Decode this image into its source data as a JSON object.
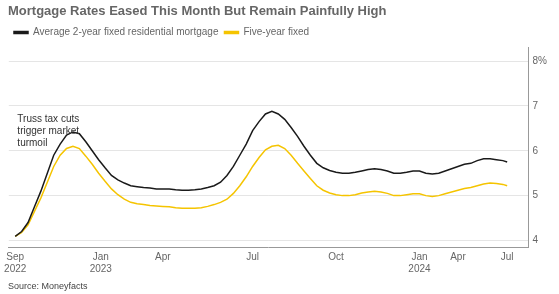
{
  "chart_data": {
    "type": "line",
    "title": "Mortgage Rates Eased This Month But Remain Painfully High",
    "x": [
      0,
      0.3,
      0.6,
      0.9,
      1.2,
      1.5,
      1.8,
      2.1,
      2.4,
      2.7,
      3.0,
      3.3,
      3.6,
      3.9,
      4.2,
      4.5,
      4.8,
      5.1,
      5.4,
      5.7,
      6.0,
      6.3,
      6.6,
      6.9,
      7.2,
      7.5,
      7.8,
      8.1,
      8.4,
      8.7,
      9.0,
      9.3,
      9.6,
      9.9,
      10.2,
      10.5,
      10.8,
      11.1,
      11.4,
      11.7,
      12.0,
      12.3,
      12.6,
      12.9,
      13.2,
      13.5,
      13.8,
      14.1,
      14.4,
      14.7,
      15.0,
      15.3,
      15.6,
      15.9,
      16.2,
      16.5,
      16.8,
      17.1,
      17.4,
      17.7,
      18.0,
      18.3,
      18.6,
      18.9,
      19.2,
      19.5,
      19.8,
      20.1,
      20.4,
      20.7,
      21.0,
      21.3,
      21.6,
      21.9,
      22.2,
      22.5,
      22.8,
      23.0
    ],
    "series": [
      {
        "name": "Average 2-year fixed residential mortgage",
        "color": "#1a1a1a",
        "values": [
          4.09,
          4.2,
          4.4,
          4.75,
          5.1,
          5.5,
          5.9,
          6.15,
          6.35,
          6.42,
          6.38,
          6.2,
          6.0,
          5.8,
          5.62,
          5.45,
          5.35,
          5.28,
          5.22,
          5.2,
          5.18,
          5.17,
          5.15,
          5.15,
          5.15,
          5.13,
          5.12,
          5.12,
          5.13,
          5.15,
          5.18,
          5.22,
          5.3,
          5.45,
          5.65,
          5.9,
          6.15,
          6.45,
          6.65,
          6.82,
          6.88,
          6.82,
          6.7,
          6.52,
          6.32,
          6.1,
          5.9,
          5.72,
          5.62,
          5.56,
          5.52,
          5.5,
          5.5,
          5.52,
          5.55,
          5.58,
          5.6,
          5.58,
          5.55,
          5.5,
          5.5,
          5.52,
          5.55,
          5.55,
          5.5,
          5.48,
          5.5,
          5.55,
          5.6,
          5.65,
          5.7,
          5.72,
          5.78,
          5.82,
          5.82,
          5.8,
          5.78,
          5.75
        ]
      },
      {
        "name": "Five-year fixed",
        "color": "#f5c400",
        "values": [
          4.09,
          4.18,
          4.35,
          4.65,
          4.95,
          5.3,
          5.65,
          5.9,
          6.05,
          6.1,
          6.05,
          5.88,
          5.7,
          5.5,
          5.32,
          5.15,
          5.02,
          4.92,
          4.85,
          4.82,
          4.8,
          4.78,
          4.77,
          4.76,
          4.75,
          4.73,
          4.72,
          4.72,
          4.72,
          4.73,
          4.76,
          4.8,
          4.85,
          4.92,
          5.05,
          5.22,
          5.42,
          5.65,
          5.85,
          6.02,
          6.1,
          6.12,
          6.05,
          5.9,
          5.72,
          5.55,
          5.38,
          5.22,
          5.12,
          5.06,
          5.02,
          5.0,
          5.0,
          5.02,
          5.06,
          5.08,
          5.1,
          5.08,
          5.05,
          5.0,
          5.0,
          5.02,
          5.04,
          5.04,
          5.0,
          4.98,
          5.0,
          5.04,
          5.08,
          5.12,
          5.16,
          5.18,
          5.22,
          5.26,
          5.28,
          5.27,
          5.25,
          5.22
        ]
      }
    ],
    "xlim": [
      -0.3,
      24.0
    ],
    "xticks": [
      {
        "value": 0,
        "label": "Sep 2022"
      },
      {
        "value": 4.0,
        "label": "Jan 2023"
      },
      {
        "value": 6.9,
        "label": "Apr"
      },
      {
        "value": 11.1,
        "label": "Jul"
      },
      {
        "value": 15.0,
        "label": "Oct"
      },
      {
        "value": 18.9,
        "label": "Jan 2024"
      },
      {
        "value": 20.7,
        "label": "Apr"
      },
      {
        "value": 23.0,
        "label": "Jul"
      }
    ],
    "ylim": [
      3.85,
      8.3
    ],
    "yticks": [
      4,
      5,
      6,
      7,
      {
        "value": 8,
        "label": "8%"
      }
    ],
    "grid": true,
    "legend": "top",
    "annotations": [
      {
        "text": "Truss tax cuts\ntrigger market\nturmoil",
        "x": 0.1,
        "y": 6.82
      }
    ],
    "source": "Source: Moneyfacts"
  }
}
